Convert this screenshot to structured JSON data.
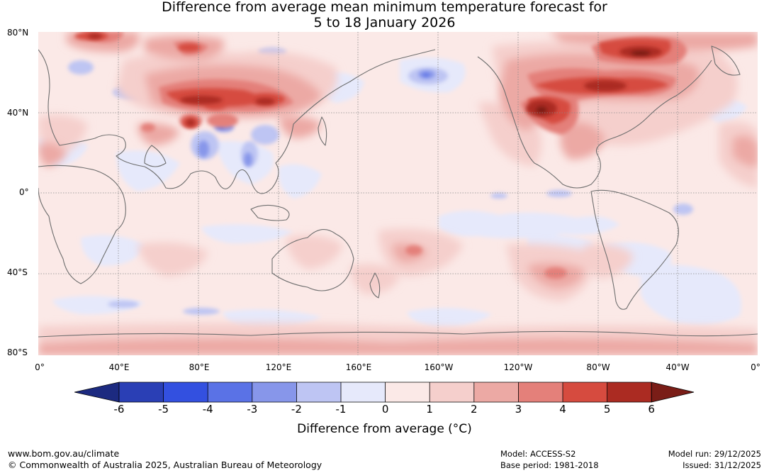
{
  "title_line1": "Difference from average mean minimum temperature forecast for",
  "title_line2": "5 to 18 January 2026",
  "lat_labels": [
    "80°N",
    "40°N",
    "0°",
    "40°S",
    "80°S"
  ],
  "lon_labels": [
    "0°",
    "40°E",
    "80°E",
    "120°E",
    "160°E",
    "160°W",
    "120°W",
    "80°W",
    "40°W",
    "0°"
  ],
  "colorbar": {
    "ticks": [
      "-6",
      "-5",
      "-4",
      "-3",
      "-2",
      "-1",
      "0",
      "1",
      "2",
      "3",
      "4",
      "5",
      "6"
    ],
    "colors": {
      "lt_neg6": "#1c2a80",
      "neg6_neg5": "#2a3fb5",
      "neg5_neg4": "#3350e0",
      "neg4_neg3": "#5a72e6",
      "neg3_neg2": "#8796ea",
      "neg2_neg1": "#bec5f3",
      "neg1_0": "#e6e9fb",
      "0_1": "#fbe9e7",
      "1_2": "#f5cfcc",
      "2_3": "#eca9a4",
      "3_4": "#e4807a",
      "4_5": "#d64b3f",
      "5_6": "#ab2b22",
      "gt_6": "#7a1d17"
    },
    "title": "Difference from average (°C)"
  },
  "footer": {
    "url": "www.bom.gov.au/climate",
    "copyright": "© Commonwealth of Australia 2025, Australian Bureau of Meteorology",
    "model": "Model: ACCESS-S2",
    "base_period": "Base period: 1981-2018",
    "model_run": "Model run: 29/12/2025",
    "issued": "Issued: 31/12/2025"
  }
}
